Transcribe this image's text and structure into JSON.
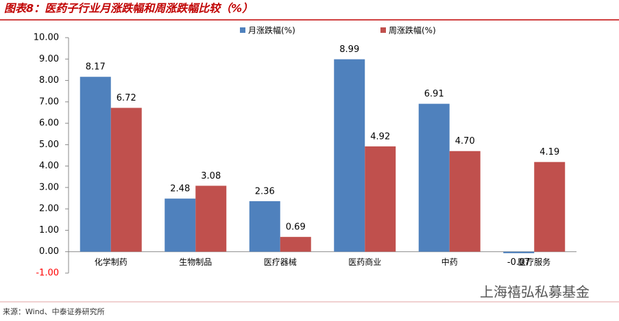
{
  "chart_data": {
    "type": "bar",
    "title": "图表8：医药子行业月涨跌幅和周涨跌幅比较（%）",
    "source": "来源：Wind、中泰证券研究所",
    "watermark": "上海禧弘私募基金",
    "categories": [
      "化学制药",
      "生物制品",
      "医疗器械",
      "医药商业",
      "中药",
      "医疗服务"
    ],
    "series": [
      {
        "name": "月涨跌幅(%)",
        "color": "#4f81bd",
        "values": [
          8.17,
          2.48,
          2.36,
          8.99,
          6.91,
          -0.07
        ],
        "value_labels": [
          "8.17",
          "2.48",
          "2.36",
          "8.99",
          "6.91",
          "-0.07"
        ]
      },
      {
        "name": "周涨跌幅(%)",
        "color": "#c0504d",
        "values": [
          6.72,
          3.08,
          0.69,
          4.92,
          4.7,
          4.19
        ],
        "value_labels": [
          "6.72",
          "3.08",
          "0.69",
          "4.92",
          "4.70",
          "4.19"
        ]
      }
    ],
    "ylim": [
      -1,
      10
    ],
    "yticks": [
      {
        "value": -1,
        "label": "-1.00"
      },
      {
        "value": 0,
        "label": "0.00"
      },
      {
        "value": 1,
        "label": "1.00"
      },
      {
        "value": 2,
        "label": "2.00"
      },
      {
        "value": 3,
        "label": "3.00"
      },
      {
        "value": 4,
        "label": "4.00"
      },
      {
        "value": 5,
        "label": "5.00"
      },
      {
        "value": 6,
        "label": "6.00"
      },
      {
        "value": 7,
        "label": "7.00"
      },
      {
        "value": 8,
        "label": "8.00"
      },
      {
        "value": 9,
        "label": "9.00"
      },
      {
        "value": 10,
        "label": "10.00"
      }
    ],
    "negative_tick_color": "#ff0000",
    "legend": "top"
  }
}
